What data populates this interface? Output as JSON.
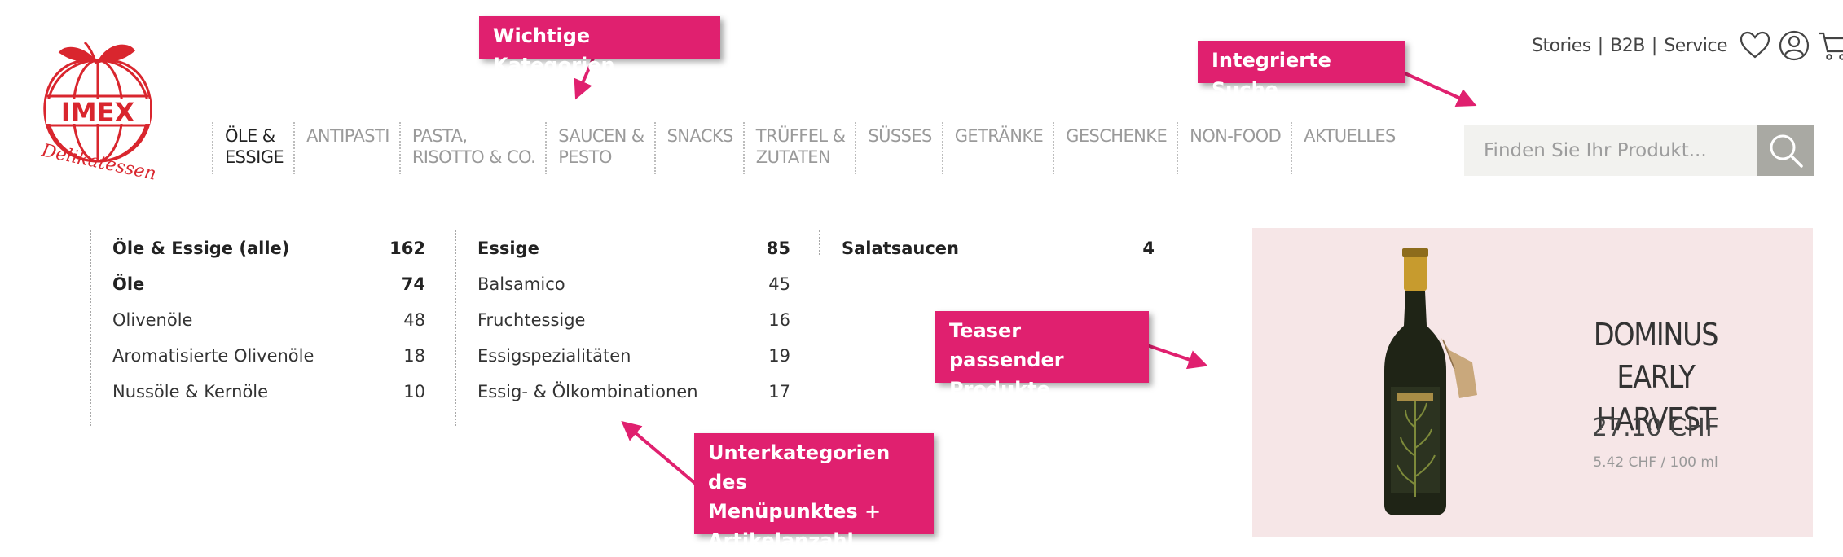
{
  "brand": {
    "name": "IMEX",
    "script": "Delikatessen"
  },
  "toplinks": [
    "Stories",
    "B2B",
    "Service"
  ],
  "nav": [
    {
      "label": "ÖLE &\nESSIGE",
      "active": true
    },
    {
      "label": "ANTIPASTI"
    },
    {
      "label": "PASTA,\nRISOTTO & CO."
    },
    {
      "label": "SAUCEN &\nPESTO"
    },
    {
      "label": "SNACKS"
    },
    {
      "label": "TRÜFFEL &\nZUTATEN"
    },
    {
      "label": "SÜSSES"
    },
    {
      "label": "GETRÄNKE"
    },
    {
      "label": "GESCHENKE"
    },
    {
      "label": "NON-FOOD"
    },
    {
      "label": "AKTUELLES"
    }
  ],
  "search": {
    "placeholder": "Finden Sie Ihr Produkt..."
  },
  "submenu": {
    "col1": [
      {
        "label": "Öle & Essige (alle)",
        "count": "162",
        "bold": true
      },
      {
        "label": "Öle",
        "count": "74",
        "bold": true
      },
      {
        "label": "Olivenöle",
        "count": "48"
      },
      {
        "label": "Aromatisierte Olivenöle",
        "count": "18"
      },
      {
        "label": "Nussöle & Kernöle",
        "count": "10"
      }
    ],
    "col2": [
      {
        "label": "Essige",
        "count": "85",
        "bold": true
      },
      {
        "label": "Balsamico",
        "count": "45"
      },
      {
        "label": "Fruchtessige",
        "count": "16"
      },
      {
        "label": "Essigspezialitäten",
        "count": "19"
      },
      {
        "label": "Essig- & Ölkombinationen",
        "count": "17"
      }
    ],
    "col3": [
      {
        "label": "Salatsaucen",
        "count": "4",
        "bold": true
      }
    ]
  },
  "teaser": {
    "title": "DOMINUS EARLY\nHARVEST",
    "price": "27.10 CHF",
    "unit_price": "5.42 CHF / 100 ml"
  },
  "annotations": {
    "kategorien": "Wichtige Kategorien",
    "suche": "Integrierte Suche",
    "teaser": "Teaser passender\nProdukte",
    "unterkategorien": "Unterkategorien des\nMenüpunktes +\nArtikelanzahl"
  },
  "colors": {
    "brand_red": "#d9262e",
    "annotation_pink": "#e0206f",
    "teaser_bg": "#f6e6e7",
    "search_btn": "#a9a9a3"
  },
  "icons": [
    "heart-icon",
    "user-icon",
    "cart-icon",
    "search-icon"
  ]
}
